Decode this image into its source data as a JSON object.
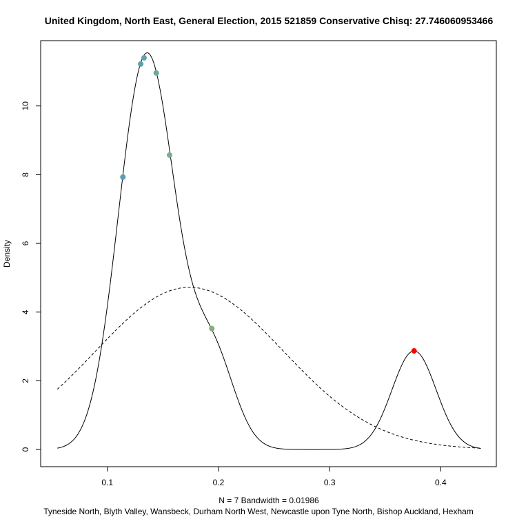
{
  "chart_data": {
    "type": "line",
    "title": "United Kingdom, North East, General Election, 2015 521859 Conservative Chisq: 27.746060953466",
    "ylabel": "Density",
    "xlabel_line1": "N = 7   Bandwidth = 0.01986",
    "xlabel_line2": "Tyneside North, Blyth Valley, Wansbeck, Durham North West, Newcastle upon Tyne North, Bishop Auckland, Hexham",
    "xlim": [
      0.04,
      0.45
    ],
    "ylim": [
      -0.5,
      11.9
    ],
    "x_ticks": [
      0.1,
      0.2,
      0.3,
      0.4
    ],
    "x_tick_labels": [
      "0.1",
      "0.2",
      "0.3",
      "0.4"
    ],
    "y_ticks": [
      0,
      2,
      4,
      6,
      8,
      10
    ],
    "y_tick_labels": [
      "0",
      "2",
      "4",
      "6",
      "8",
      "10"
    ],
    "kde": {
      "bandwidth": 0.01986,
      "samples": [
        0.114,
        0.13,
        0.133,
        0.144,
        0.156,
        0.194,
        0.376
      ],
      "range": [
        0.055,
        0.436
      ]
    },
    "normal": {
      "mean": 0.1739,
      "sd": 0.0845,
      "range": [
        0.055,
        0.436
      ],
      "style": "dashed"
    },
    "points": [
      {
        "x": 0.114,
        "y": 7.93,
        "color": "#5b9bb3"
      },
      {
        "x": 0.13,
        "y": 11.22,
        "color": "#5e9fae"
      },
      {
        "x": 0.133,
        "y": 11.4,
        "color": "#61a2ab"
      },
      {
        "x": 0.144,
        "y": 10.96,
        "color": "#6aaa9c"
      },
      {
        "x": 0.156,
        "y": 8.57,
        "color": "#79ae8e"
      },
      {
        "x": 0.194,
        "y": 3.52,
        "color": "#86ad7c"
      },
      {
        "x": 0.376,
        "y": 2.87,
        "color": "#ff0000"
      }
    ]
  }
}
